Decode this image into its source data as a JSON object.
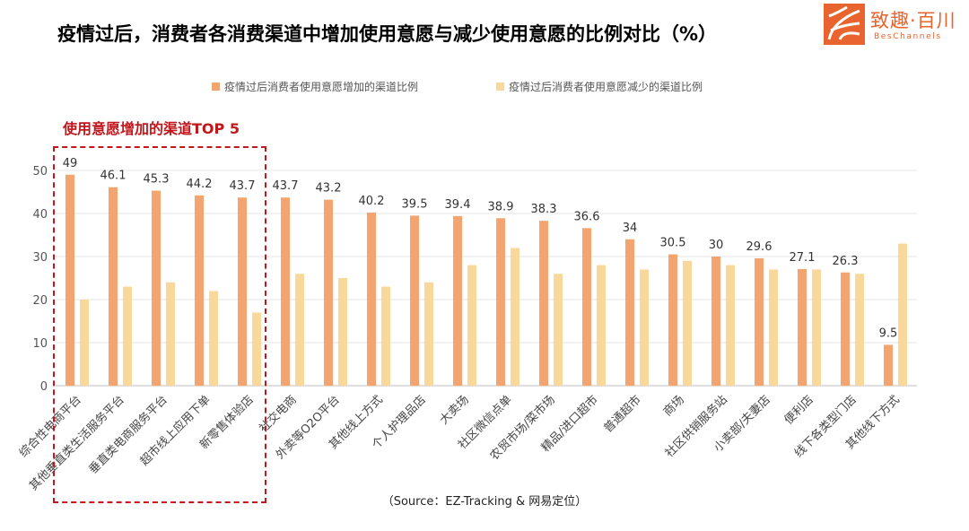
{
  "page": {
    "title": "疫情过后，消费者各消费渠道中增加使用意愿与减少使用意愿的比例对比（%）",
    "source": "（Source：EZ-Tracking & 网易定位）",
    "top5_label": "使用意愿增加的渠道TOP 5"
  },
  "logo": {
    "name": "致趣·百川",
    "sub": "BesChannels",
    "color": "#e8632d"
  },
  "chart_data": {
    "type": "bar",
    "title": "疫情过后，消费者各消费渠道中增加使用意愿与减少使用意愿的比例对比（%）",
    "xlabel": "",
    "ylabel": "",
    "ylim": [
      0,
      50
    ],
    "yticks": [
      0,
      10,
      20,
      30,
      40,
      50
    ],
    "grid": true,
    "legend_position": "top",
    "categories": [
      "综合性电商平台",
      "其他垂直类生活服务平台",
      "垂直类电商服务平台",
      "超市线上应用下单",
      "新零售体验店",
      "社交电商",
      "外卖等O2O平台",
      "其他线上方式",
      "个人护理品店",
      "大卖场",
      "社区微信点单",
      "农贸市场/菜市场",
      "精品/进口超市",
      "普通超市",
      "商场",
      "社区供销服务站",
      "小卖部/夫妻店",
      "便利店",
      "线下各类型门店",
      "其他线下方式"
    ],
    "series": [
      {
        "name": "疫情过后消费者使用意愿增加的渠道比例",
        "color": "#f4a46e",
        "labeled": true,
        "values": [
          49,
          46.1,
          45.3,
          44.2,
          43.7,
          43.7,
          43.2,
          40.2,
          39.5,
          39.4,
          38.9,
          38.3,
          36.6,
          34,
          30.5,
          30,
          29.6,
          27.1,
          26.3,
          9.5
        ]
      },
      {
        "name": "疫情过后消费者使用意愿减少的渠道比例",
        "color": "#fad89c",
        "labeled": false,
        "values": [
          20,
          23,
          24,
          22,
          17,
          26,
          25,
          23,
          24,
          28,
          32,
          26,
          28,
          27,
          29,
          28,
          27,
          27,
          26,
          33
        ]
      }
    ]
  }
}
